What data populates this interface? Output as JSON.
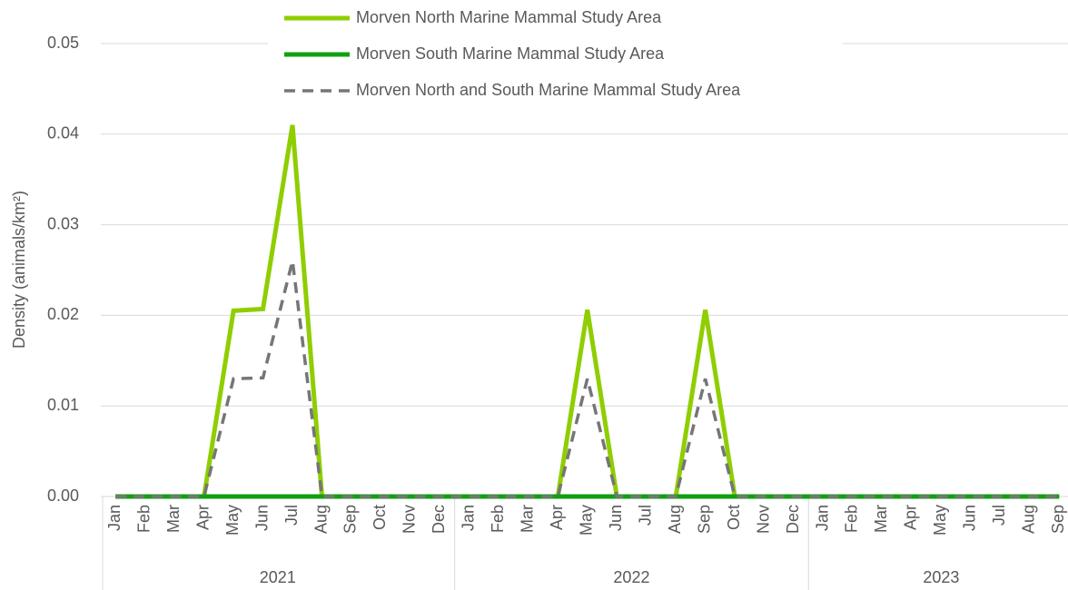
{
  "chart_data": {
    "type": "line",
    "y_label": "Density (animals/km²)",
    "categories": [
      "Jan",
      "Feb",
      "Mar",
      "Apr",
      "May",
      "Jun",
      "Jul",
      "Aug",
      "Sep",
      "Oct",
      "Nov",
      "Dec",
      "Jan",
      "Feb",
      "Mar",
      "Apr",
      "May",
      "Jun",
      "Jul",
      "Aug",
      "Sep",
      "Oct",
      "Nov",
      "Dec",
      "Jan",
      "Feb",
      "Mar",
      "Apr",
      "May",
      "Jun",
      "Jul",
      "Aug",
      "Sep"
    ],
    "groups": [
      "2021",
      "2022",
      "2023"
    ],
    "group_sizes": [
      12,
      12,
      9
    ],
    "ylim": [
      0,
      0.05
    ],
    "yticks": [
      {
        "value": 0,
        "label": "0.00"
      },
      0.01,
      0.02,
      0.03,
      0.04,
      0.05
    ],
    "grid": true,
    "legend": "top",
    "series": [
      {
        "name": "Morven North Marine Mammal Study Area",
        "color": "#8fce00",
        "dash": false,
        "values": [
          0,
          0,
          0,
          0,
          0.0205,
          0.0207,
          0.041,
          0,
          0,
          0,
          0,
          0,
          0,
          0,
          0,
          0,
          0.0206,
          0,
          0,
          0,
          0.0206,
          0,
          0,
          0,
          0,
          0,
          0,
          0,
          0,
          0,
          0,
          0,
          0
        ]
      },
      {
        "name": "Morven South Marine Mammal Study Area",
        "color": "#10a010",
        "dash": false,
        "values": [
          0,
          0,
          0,
          0,
          0,
          0,
          0,
          0,
          0,
          0,
          0,
          0,
          0,
          0,
          0,
          0,
          0,
          0,
          0,
          0,
          0,
          0,
          0,
          0,
          0,
          0,
          0,
          0,
          0,
          0,
          0,
          0,
          0
        ]
      },
      {
        "name": "Morven North and South Marine Mammal Study Area",
        "color": "#767676",
        "dash": true,
        "values": [
          0,
          0,
          0,
          0,
          0.013,
          0.0131,
          0.026,
          0,
          0,
          0,
          0,
          0,
          0,
          0,
          0,
          0,
          0.013,
          0,
          0,
          0,
          0.013,
          0,
          0,
          0,
          0,
          0,
          0,
          0,
          0,
          0,
          0,
          0,
          0
        ]
      }
    ]
  }
}
